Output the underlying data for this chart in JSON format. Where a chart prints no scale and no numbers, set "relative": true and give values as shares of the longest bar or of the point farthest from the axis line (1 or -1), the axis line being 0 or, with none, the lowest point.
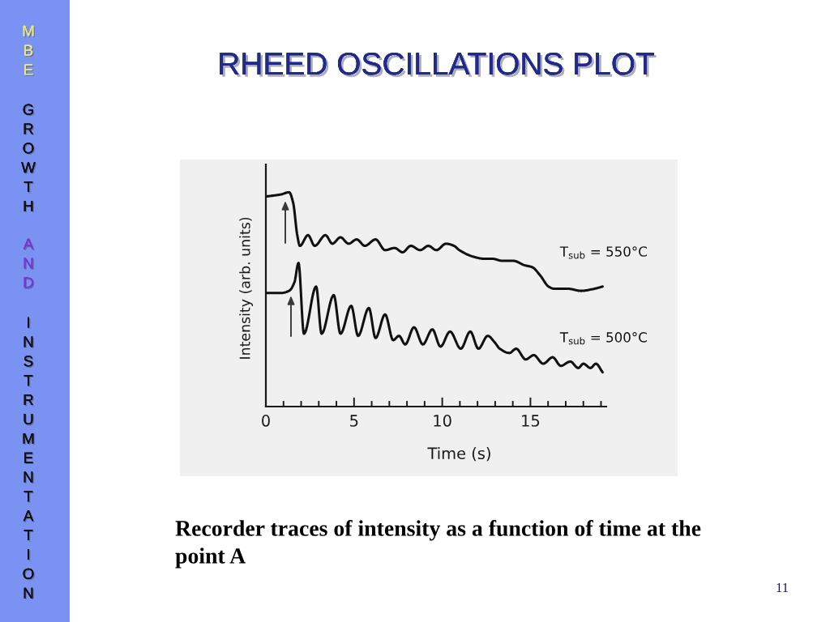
{
  "chart_data": {
    "type": "line",
    "title": "RHEED OSCILLATIONS PLOT",
    "xlabel": "Time (s)",
    "ylabel": "Intensity (arb. units)",
    "relative": true,
    "xlim": [
      0,
      19.3
    ],
    "xticks": [
      0,
      {
        "value": 1,
        "label": null
      },
      {
        "value": 2,
        "label": null
      },
      {
        "value": 3,
        "label": null
      },
      {
        "value": 4,
        "label": null
      },
      5,
      {
        "value": 6,
        "label": null
      },
      {
        "value": 7,
        "label": null
      },
      {
        "value": 8,
        "label": null
      },
      {
        "value": 9,
        "label": null
      },
      10,
      {
        "value": 11,
        "label": null
      },
      {
        "value": 12,
        "label": null
      },
      {
        "value": 13,
        "label": null
      },
      {
        "value": 14,
        "label": null
      },
      15,
      {
        "value": 16,
        "label": null
      },
      {
        "value": 17,
        "label": null
      },
      {
        "value": 18,
        "label": null
      },
      {
        "value": 19,
        "label": null
      }
    ],
    "tick_labels": "x",
    "series": [
      {
        "name": "T$_{sub}$ = 550°C",
        "color": "#111111",
        "x": [
          0,
          0.86,
          1.32,
          1.55,
          1.78,
          1.93,
          2.39,
          2.77,
          3.38,
          3.77,
          4.23,
          4.69,
          5.15,
          5.61,
          6.22,
          6.76,
          7.3,
          7.75,
          8.22,
          8.75,
          9.21,
          9.67,
          10.21,
          10.67,
          10.97,
          11.74,
          12.35,
          12.81,
          13.43,
          14.04,
          14.65,
          15.11,
          15.57,
          16.03,
          16.34,
          17.1,
          17.87,
          18.64,
          19.09
        ],
        "values": [
          0.98,
          0.99,
          1.0,
          0.95,
          0.8,
          0.75,
          0.8,
          0.75,
          0.8,
          0.76,
          0.79,
          0.76,
          0.78,
          0.75,
          0.78,
          0.73,
          0.74,
          0.72,
          0.75,
          0.73,
          0.75,
          0.73,
          0.76,
          0.75,
          0.73,
          0.7,
          0.69,
          0.69,
          0.68,
          0.68,
          0.66,
          0.65,
          0.61,
          0.56,
          0.55,
          0.55,
          0.54,
          0.55,
          0.56
        ]
      },
      {
        "name": "T$_{sub}$ = 500°C",
        "color": "#111111",
        "x": [
          0,
          0.86,
          1.32,
          1.62,
          1.85,
          2.16,
          2.85,
          3.16,
          3.85,
          4.23,
          4.84,
          5.23,
          5.84,
          6.22,
          6.76,
          7.22,
          7.55,
          7.9,
          8.4,
          8.9,
          9.44,
          9.9,
          10.44,
          11.05,
          11.59,
          12.05,
          12.58,
          12.97,
          13.26,
          13.81,
          14.19,
          14.73,
          15.19,
          15.72,
          16.26,
          16.72,
          17.26,
          17.71,
          18.0,
          18.4,
          18.71,
          19.09
        ],
        "values": [
          0.53,
          0.53,
          0.54,
          0.58,
          0.67,
          0.34,
          0.56,
          0.34,
          0.52,
          0.34,
          0.47,
          0.33,
          0.46,
          0.32,
          0.43,
          0.31,
          0.33,
          0.29,
          0.37,
          0.29,
          0.36,
          0.28,
          0.35,
          0.27,
          0.35,
          0.27,
          0.33,
          0.3,
          0.27,
          0.25,
          0.27,
          0.22,
          0.24,
          0.2,
          0.23,
          0.19,
          0.21,
          0.18,
          0.2,
          0.18,
          0.2,
          0.16
        ]
      }
    ],
    "annotations": [
      "MBE",
      "GROWTH",
      "AND",
      "INSTRUMENTATION",
      "Recorder traces of intensity as a function of time at the\npoint A",
      "11"
    ]
  }
}
